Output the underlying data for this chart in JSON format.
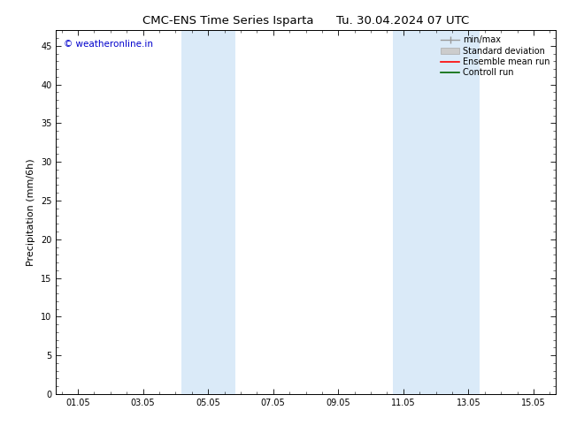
{
  "title": "CMC-ENS Time Series Isparta      Tu. 30.04.2024 07 UTC",
  "ylabel": "Precipitation (mm/6h)",
  "xlim": [
    0.33,
    15.67
  ],
  "ylim": [
    0,
    47
  ],
  "yticks": [
    0,
    5,
    10,
    15,
    20,
    25,
    30,
    35,
    40,
    45
  ],
  "xticks": [
    1.0,
    3.0,
    5.0,
    7.0,
    9.0,
    11.0,
    13.0,
    15.0
  ],
  "xticklabels": [
    "01.05",
    "03.05",
    "05.05",
    "07.05",
    "09.05",
    "11.05",
    "13.05",
    "15.05"
  ],
  "bg_color": "#ffffff",
  "shaded_regions": [
    {
      "xmin": 4.17,
      "xmax": 5.83,
      "color": "#daeaf8"
    },
    {
      "xmin": 10.67,
      "xmax": 13.33,
      "color": "#daeaf8"
    }
  ],
  "watermark": "© weatheronline.in",
  "watermark_color": "#0000cc",
  "legend_entries": [
    {
      "label": "min/max",
      "color": "#999999",
      "lw": 1.0
    },
    {
      "label": "Standard deviation",
      "color": "#cccccc",
      "lw": 5
    },
    {
      "label": "Ensemble mean run",
      "color": "#ff0000",
      "lw": 1.2
    },
    {
      "label": "Controll run",
      "color": "#006600",
      "lw": 1.2
    }
  ],
  "title_fontsize": 9.5,
  "tick_fontsize": 7,
  "ylabel_fontsize": 8,
  "watermark_fontsize": 7.5,
  "legend_fontsize": 7
}
